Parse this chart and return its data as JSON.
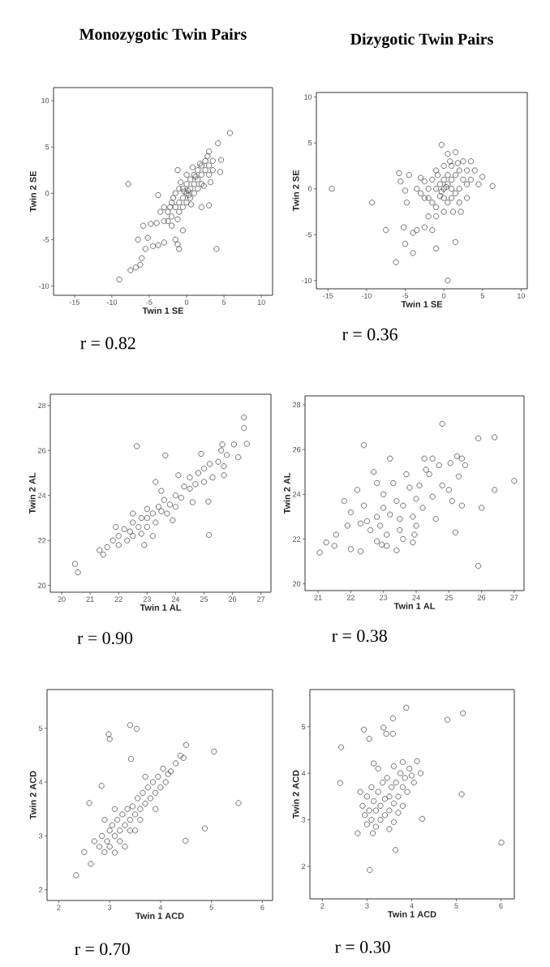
{
  "chart_data": [
    {
      "type": "scatter",
      "title": "Monozygotic Twin Pairs",
      "xlabel": "Twin 1 SE",
      "ylabel": "Twin 2 SE",
      "xlim": [
        -17.8,
        11.5
      ],
      "ylim": [
        -11,
        11.4
      ],
      "xticks": [
        -15,
        -10,
        -5,
        0,
        5,
        10
      ],
      "yticks": [
        -10,
        -5,
        0,
        5,
        10
      ],
      "marker": "circle",
      "annotations": [
        "r = 0.82"
      ],
      "series": [
        {
          "color": "#333333",
          "x": [
            -7.8,
            -9,
            -7.5,
            -6.8,
            -6.2,
            -6,
            -5.5,
            -6.5,
            -5.8,
            -5.2,
            -4.8,
            -4.5,
            -4,
            -3.8,
            -3.5,
            -3,
            -3.8,
            -1,
            -1.5,
            -1.2,
            4,
            3,
            5.8,
            4.2,
            3,
            3.5,
            4.5,
            4.6,
            -1.2,
            -0.5,
            2,
            -3,
            -2.5,
            -2,
            -2,
            -1.5,
            -1.5,
            -1,
            -1,
            -1,
            -0.5,
            -0.5,
            -0.5,
            0,
            0,
            0,
            0,
            0.5,
            0.5,
            0.5,
            1,
            1,
            1,
            1.5,
            1.5,
            1.5,
            2,
            2,
            2,
            2.5,
            2.5,
            3,
            3,
            3.5,
            -2,
            -3,
            -2.5,
            0.2,
            0.3,
            -0.3,
            1.2,
            -1.8,
            -2.2,
            0.8,
            1.8,
            2.8,
            3.2,
            -0.8,
            0.6,
            -1.2,
            2.3
          ],
          "values": [
            1,
            -9.3,
            -8.3,
            -8,
            -7.7,
            -7,
            -6,
            -5,
            -3.5,
            -4.8,
            -3.3,
            -5.7,
            -3.2,
            -5.6,
            -2,
            -5.3,
            -0.2,
            -6,
            -5,
            -5.5,
            -6,
            -1.3,
            6.5,
            5.4,
            4.5,
            3.5,
            2.3,
            3.6,
            2.5,
            -4,
            -1.5,
            -3,
            -2,
            -1,
            -2.5,
            -1.5,
            0,
            -1,
            0.5,
            -2,
            -0.5,
            0.5,
            -1.5,
            0,
            1,
            -1,
            2,
            0.5,
            1.5,
            -0.5,
            1,
            2,
            0,
            1.5,
            2.5,
            0.5,
            2,
            3,
            1,
            2.5,
            3.5,
            3,
            2,
            2.5,
            -3.5,
            -1.5,
            -3,
            0.3,
            -0.2,
            0.2,
            1.8,
            -0.5,
            -1.5,
            2.8,
            3.2,
            4,
            1.2,
            1.2,
            -1.2,
            -2.8,
            0.8
          ]
        }
      ]
    },
    {
      "type": "scatter",
      "title": "Dizygotic Twin Pairs",
      "xlabel": "Twin 1 SE",
      "ylabel": "Twin 2 SE",
      "xlim": [
        -16.5,
        10.8
      ],
      "ylim": [
        -10.9,
        10.5
      ],
      "xticks": [
        -15,
        -10,
        -5,
        0,
        5,
        10
      ],
      "yticks": [
        -10,
        -5,
        0,
        5,
        10
      ],
      "marker": "circle",
      "annotations": [
        "r = 0.36"
      ],
      "series": [
        {
          "color": "#333333",
          "x": [
            -14.5,
            -9.3,
            -7.5,
            -6.2,
            -5,
            -4,
            -5.2,
            -4,
            -3.5,
            -2.5,
            -1.5,
            -1,
            0.5,
            1.5,
            -5.8,
            -5.6,
            -4.5,
            -4.8,
            -5,
            6.3,
            5,
            -0.3,
            1.5,
            0.5,
            3.5,
            -3,
            -2,
            -2,
            -1.5,
            -1.5,
            -1,
            -1,
            -1,
            -0.5,
            -0.5,
            0,
            0,
            0,
            0,
            0,
            0.5,
            0.5,
            0.5,
            1,
            1,
            1,
            1,
            1.5,
            1.5,
            2,
            2,
            2,
            2.5,
            2.5,
            3,
            3,
            3.5,
            4,
            4.5,
            -2.5,
            -3,
            -3.5,
            -2,
            -1,
            0.3,
            -0.3,
            0.8,
            -0.8,
            1.2,
            2.2,
            1.8,
            -2.5,
            3
          ],
          "values": [
            0,
            -1.5,
            -4.5,
            -8,
            -6,
            -7,
            -4.2,
            -4.8,
            -4.5,
            -4.2,
            -4.5,
            -6.5,
            -10,
            -5.8,
            1.7,
            0.8,
            1.5,
            -1.5,
            -0.2,
            0.3,
            1.3,
            4.8,
            4,
            3.8,
            3,
            1.2,
            0,
            -1,
            1,
            -1.5,
            0,
            2,
            -2,
            0.5,
            -0.8,
            0,
            1,
            -1,
            2.5,
            -2.5,
            0.5,
            1.5,
            -1.5,
            0,
            1,
            -1,
            2.5,
            1.5,
            -0.5,
            0,
            2,
            -1.5,
            1,
            3,
            0.5,
            2,
            1,
            2,
            0.5,
            -1,
            -0.5,
            0,
            -3,
            -3,
            0.2,
            -0.3,
            3,
            1.5,
            -2.5,
            -2.5,
            2.8,
            0.8,
            -1
          ]
        }
      ]
    },
    {
      "type": "scatter",
      "xlabel": "Twin 1 AL",
      "ylabel": "Twin 2 AL",
      "xlim": [
        19.6,
        27.35
      ],
      "ylim": [
        19.7,
        28.5
      ],
      "xticks": [
        20,
        21,
        22,
        23,
        24,
        25,
        26,
        27
      ],
      "yticks": [
        20,
        22,
        24,
        26,
        28
      ],
      "marker": "circle",
      "annotations": [
        "r = 0.90"
      ],
      "series": [
        {
          "color": "#333333",
          "x": [
            20.47,
            20.57,
            21.33,
            21.46,
            22.64,
            23.64,
            23.3,
            24.9,
            25.15,
            25.17,
            23.2,
            26.4,
            26.4,
            26.5,
            25.64,
            26.05,
            26.2,
            25.7,
            25.7,
            21.8,
            22,
            22,
            22.2,
            22.3,
            22.4,
            22.5,
            22.5,
            22.7,
            22.8,
            22.8,
            23,
            23,
            23,
            23.2,
            23.3,
            23.4,
            23.5,
            23.6,
            23.7,
            23.8,
            24,
            24,
            24.2,
            24.3,
            24.5,
            24.5,
            24.7,
            24.8,
            25,
            25,
            25.2,
            25.3,
            25.5,
            25.6,
            25.8,
            24.1,
            23.5,
            22.5,
            21.9,
            23.9,
            24.6,
            22.9,
            21.6
          ],
          "values": [
            20.96,
            20.58,
            21.57,
            21.37,
            26.19,
            25.78,
            24.6,
            25.85,
            23.73,
            22.24,
            22.2,
            27.47,
            27,
            26.3,
            26.27,
            26.27,
            25.7,
            25.3,
            24.9,
            22,
            22.2,
            21.8,
            22.5,
            22,
            22.4,
            22.8,
            22.2,
            22.6,
            23,
            22.3,
            23,
            22.6,
            23.4,
            23.2,
            22.8,
            23.5,
            23.3,
            23.8,
            23.2,
            23.6,
            24,
            23.5,
            23.9,
            24.4,
            24.3,
            24.8,
            24.5,
            25,
            25.2,
            24.6,
            25.4,
            24.8,
            25.5,
            26,
            25.8,
            24.9,
            24.2,
            23.2,
            22.6,
            22.9,
            23.7,
            21.8,
            21.7
          ]
        }
      ]
    },
    {
      "type": "scatter",
      "xlabel": "Twin 1 AL",
      "ylabel": "Twin 2 AL",
      "xlim": [
        20.6,
        27.3
      ],
      "ylim": [
        19.7,
        28.4
      ],
      "xticks": [
        21,
        22,
        23,
        24,
        25,
        26,
        27
      ],
      "yticks": [
        20,
        22,
        24,
        26,
        28
      ],
      "marker": "circle",
      "annotations": [
        "r = 0.38"
      ],
      "series": [
        {
          "color": "#333333",
          "x": [
            21.05,
            21.25,
            21.5,
            21.55,
            22,
            22.3,
            22.4,
            24.8,
            25.9,
            26.4,
            27,
            26.4,
            26,
            25.9,
            25.2,
            22.95,
            23.4,
            23.9,
            23.95,
            23.1,
            24.25,
            24.5,
            25.25,
            25.4,
            25.05,
            21.8,
            22,
            22.2,
            22.4,
            22.5,
            22.6,
            22.7,
            22.8,
            22.8,
            22.9,
            23,
            23,
            23.1,
            23.2,
            23.3,
            23.4,
            23.5,
            23.5,
            23.6,
            23.7,
            23.8,
            23.9,
            24,
            24,
            24.1,
            24.2,
            24.3,
            24.5,
            24.6,
            24.8,
            25,
            25.1,
            25.3,
            25.5,
            25.4,
            24.7,
            22.3,
            23.6,
            22.8,
            24.4,
            23.2,
            21.9
          ],
          "values": [
            21.4,
            21.85,
            21.7,
            22.2,
            21.55,
            21.45,
            26.2,
            27.15,
            26.5,
            26.55,
            24.6,
            24.2,
            23.4,
            20.8,
            22.3,
            21.75,
            21.5,
            21.85,
            22.2,
            21.7,
            25.6,
            25.6,
            25.7,
            25.6,
            25.4,
            23.7,
            23.2,
            24.2,
            23.5,
            22.8,
            22.4,
            25,
            24.5,
            23,
            22.6,
            23.4,
            24,
            22.2,
            23.1,
            24.5,
            23.7,
            22.9,
            22.4,
            23.5,
            24.9,
            24.3,
            23,
            23.8,
            22.6,
            24.4,
            23.4,
            25.1,
            23.9,
            22.9,
            24.4,
            24.2,
            23.7,
            24.8,
            25.3,
            23.5,
            25.3,
            22.7,
            22,
            21.9,
            24.9,
            25.6,
            22.6
          ]
        }
      ]
    },
    {
      "type": "scatter",
      "xlabel": "Twin 1 ACD",
      "ylabel": "Twin 2 ACD",
      "xlim": [
        1.77,
        6.2
      ],
      "ylim": [
        1.8,
        5.72
      ],
      "xticks": [
        2,
        3,
        4,
        5,
        6
      ],
      "yticks": [
        2,
        3,
        4,
        5
      ],
      "marker": "circle",
      "annotations": [
        "r = 0.70"
      ],
      "series": [
        {
          "color": "#333333",
          "x": [
            2.34,
            2.5,
            2.63,
            2.6,
            2.84,
            2.98,
            3.0,
            3.4,
            3.53,
            3.42,
            4.5,
            4.39,
            5.05,
            5.53,
            4.87,
            4.49,
            3.1,
            2.8,
            2.85,
            2.9,
            2.95,
            3,
            3,
            3.05,
            3.1,
            3.15,
            3.2,
            3.2,
            3.25,
            3.3,
            3.35,
            3.4,
            3.4,
            3.45,
            3.5,
            3.55,
            3.6,
            3.6,
            3.65,
            3.7,
            3.75,
            3.8,
            3.85,
            3.9,
            3.95,
            4,
            4.1,
            4.15,
            4.2,
            4.3,
            4.45,
            2.7,
            3.1,
            3.5,
            3.9,
            3.3,
            2.9,
            3.7,
            4.05
          ],
          "values": [
            2.27,
            2.7,
            2.48,
            3.61,
            3.93,
            4.89,
            4.8,
            5.06,
            4.99,
            4.43,
            4.69,
            4.49,
            4.57,
            3.61,
            3.14,
            2.91,
            2.69,
            2.8,
            3,
            2.7,
            2.9,
            3.1,
            2.8,
            3.2,
            3,
            3.3,
            3.1,
            2.9,
            3.4,
            3.2,
            3.5,
            3.3,
            3.1,
            3.55,
            3.4,
            3.7,
            3.5,
            3.3,
            3.8,
            3.6,
            3.9,
            3.7,
            4,
            3.8,
            4.1,
            3.9,
            4,
            4.15,
            4.2,
            4.35,
            4.45,
            2.9,
            3.5,
            3.1,
            3.5,
            2.8,
            3.3,
            4.1,
            4.25
          ]
        }
      ]
    },
    {
      "type": "scatter",
      "xlabel": "Twin 1 ACD",
      "ylabel": "Twin 2 ACD",
      "xlim": [
        1.72,
        6.3
      ],
      "ylim": [
        1.3,
        5.8
      ],
      "xticks": [
        2,
        3,
        4,
        5,
        6
      ],
      "yticks": [
        2,
        3,
        4,
        5
      ],
      "marker": "circle",
      "annotations": [
        "r = 0.30"
      ],
      "series": [
        {
          "color": "#333333",
          "x": [
            2.42,
            2.4,
            2.93,
            3.05,
            3.37,
            3.43,
            3.58,
            3.58,
            3.88,
            4.8,
            5.15,
            5.12,
            6.01,
            4.24,
            3.64,
            3.06,
            3.13,
            2.79,
            3.15,
            3.8,
            4.12,
            4.2,
            2.9,
            2.95,
            3,
            3,
            3.05,
            3.1,
            3.1,
            3.15,
            3.2,
            3.2,
            3.25,
            3.3,
            3.3,
            3.35,
            3.4,
            3.4,
            3.45,
            3.5,
            3.5,
            3.55,
            3.6,
            3.6,
            3.65,
            3.7,
            3.7,
            3.75,
            3.8,
            3.8,
            3.85,
            3.9,
            3.95,
            4.05,
            4,
            3.5,
            2.85,
            3.25,
            3.6
          ],
          "values": [
            4.56,
            3.79,
            4.94,
            4.74,
            4.98,
            4.85,
            4.85,
            5.18,
            5.41,
            5.15,
            5.29,
            3.55,
            2.51,
            3.02,
            2.35,
            1.92,
            2.71,
            2.71,
            4.21,
            4.24,
            4.26,
            4.0,
            3.3,
            3.1,
            3.5,
            2.9,
            3.2,
            3.7,
            3,
            3.4,
            3.2,
            2.85,
            3.6,
            3.3,
            3,
            3.8,
            3.45,
            3.1,
            3.9,
            3.5,
            3.2,
            3.7,
            3.35,
            2.95,
            3.8,
            3.5,
            3.15,
            4,
            3.7,
            3.3,
            3.9,
            3.6,
            4.1,
            3.8,
            3.95,
            2.8,
            3.6,
            4.1,
            4.15
          ]
        }
      ]
    }
  ]
}
